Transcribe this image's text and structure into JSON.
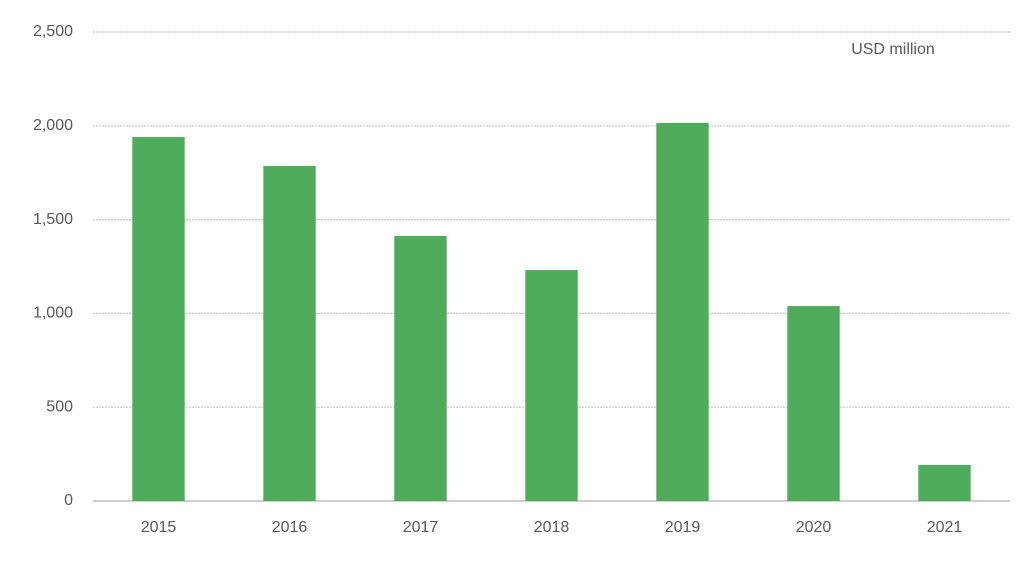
{
  "chart_data": {
    "type": "bar",
    "annotation": "USD million",
    "categories": [
      "2015",
      "2016",
      "2017",
      "2018",
      "2019",
      "2020",
      "2021"
    ],
    "values": [
      1940,
      1786,
      1413,
      1231,
      2015,
      1039,
      192
    ],
    "color": "#4eac5b",
    "ylim": [
      0,
      2500
    ],
    "yticks": [
      0,
      500,
      {
        "value": 1000,
        "label": "1,000"
      },
      {
        "value": 1500,
        "label": "1,500"
      },
      {
        "value": 2000,
        "label": "2,000"
      },
      {
        "value": 2500,
        "label": "2,500"
      }
    ],
    "grid": true
  }
}
